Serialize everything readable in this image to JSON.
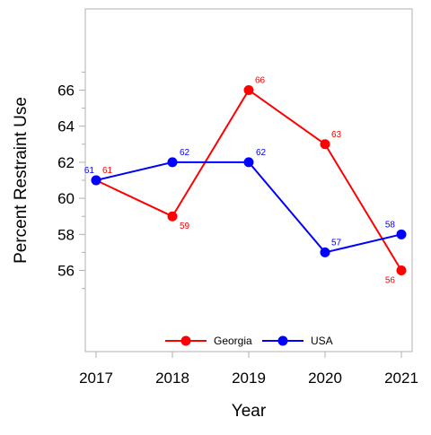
{
  "chart_data": {
    "type": "line",
    "title": "",
    "xlabel": "Year",
    "ylabel": "Percent Restraint Use",
    "x": [
      2017,
      2018,
      2019,
      2020,
      2021
    ],
    "x_tick_labels": [
      "2017",
      "2018",
      "2019",
      "2020",
      "2021"
    ],
    "y_ticks": [
      56,
      58,
      60,
      62,
      64,
      66
    ],
    "y_tick_labels": [
      "56",
      "58",
      "60",
      "62",
      "64",
      "66"
    ],
    "ylim": [
      51.5,
      70.5
    ],
    "grid": false,
    "legend_position": "bottom-center",
    "series": [
      {
        "name": "Georgia",
        "color": "#ff0000",
        "values": [
          61,
          59,
          66,
          63,
          56
        ],
        "labels": [
          "61",
          "59",
          "66",
          "63",
          "56"
        ]
      },
      {
        "name": "USA",
        "color": "#0000ff",
        "values": [
          61,
          62,
          62,
          57,
          58
        ],
        "labels": [
          "61",
          "62",
          "62",
          "57",
          "58"
        ]
      }
    ]
  }
}
